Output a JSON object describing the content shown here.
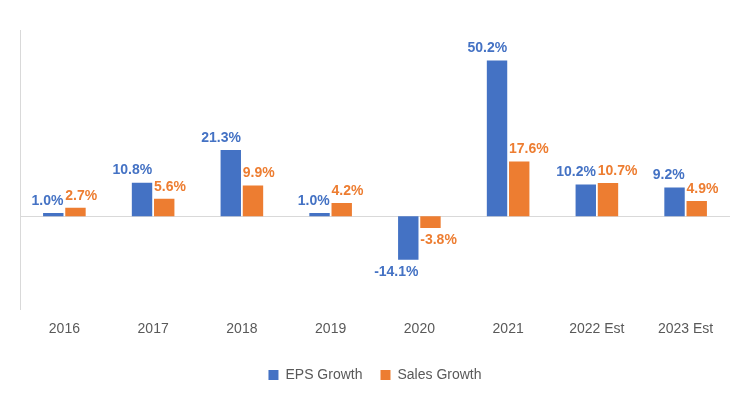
{
  "chart_data": {
    "type": "bar",
    "categories": [
      "2016",
      "2017",
      "2018",
      "2019",
      "2020",
      "2021",
      "2022 Est",
      "2023 Est"
    ],
    "series": [
      {
        "name": "EPS Growth",
        "color": "#4472C4",
        "values": [
          1.0,
          10.8,
          21.3,
          1.0,
          -14.1,
          50.2,
          10.2,
          9.2
        ],
        "value_labels": [
          "1.0%",
          "10.8%",
          "21.3%",
          "1.0%",
          "-14.1%",
          "50.2%",
          "10.2%",
          "9.2%"
        ]
      },
      {
        "name": "Sales Growth",
        "color": "#ED7D31",
        "values": [
          2.7,
          5.6,
          9.9,
          4.2,
          -3.8,
          17.6,
          10.7,
          4.9
        ],
        "value_labels": [
          "2.7%",
          "5.6%",
          "9.9%",
          "4.2%",
          "-3.8%",
          "17.6%",
          "10.7%",
          "4.9%"
        ]
      }
    ],
    "ylim": [
      -30,
      60
    ],
    "grid": false,
    "legend": "bottom",
    "data_labels": true,
    "tick_labels": "x"
  }
}
